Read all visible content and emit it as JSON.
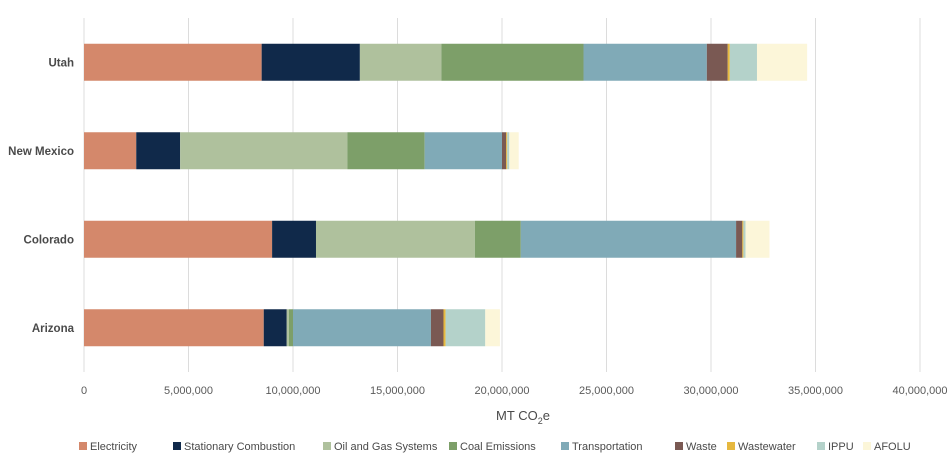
{
  "chart_data": {
    "type": "bar",
    "orientation": "horizontal",
    "stacked": true,
    "categories": [
      "Utah",
      "New Mexico",
      "Colorado",
      "Arizona"
    ],
    "xlabel_main": "MT CO",
    "xlabel_sub": "2",
    "xlabel_suffix": "e",
    "xlim": [
      0,
      40000000
    ],
    "xticks": [
      0,
      5000000,
      10000000,
      15000000,
      20000000,
      25000000,
      30000000,
      35000000,
      40000000
    ],
    "xtick_labels": [
      "0",
      "5,000,000",
      "10,000,000",
      "15,000,000",
      "20,000,000",
      "25,000,000",
      "30,000,000",
      "35,000,000",
      "40,000,000"
    ],
    "grid": true,
    "legend_position": "bottom",
    "series": [
      {
        "name": "Electricity",
        "color": "#d4886b",
        "values": [
          8500000,
          2500000,
          9000000,
          8600000
        ]
      },
      {
        "name": "Stationary Combustion",
        "color": "#10294a",
        "values": [
          4700000,
          2100000,
          2100000,
          1100000
        ]
      },
      {
        "name": "Oil and Gas Systems",
        "color": "#afc19d",
        "values": [
          3900000,
          8000000,
          7600000,
          100000
        ]
      },
      {
        "name": "Coal Emissions",
        "color": "#7d9f69",
        "values": [
          6800000,
          3700000,
          2200000,
          200000
        ]
      },
      {
        "name": "Transportation",
        "color": "#80aab7",
        "values": [
          5900000,
          3700000,
          10300000,
          6600000
        ]
      },
      {
        "name": "Waste",
        "color": "#7a5953",
        "values": [
          1000000,
          200000,
          300000,
          600000
        ]
      },
      {
        "name": "Wastewater",
        "color": "#e6b83f",
        "values": [
          100000,
          50000,
          50000,
          100000
        ]
      },
      {
        "name": "IPPU",
        "color": "#b4d2ca",
        "values": [
          1300000,
          100000,
          100000,
          1900000
        ]
      },
      {
        "name": "AFOLU",
        "color": "#fcf6d9",
        "values": [
          2400000,
          450000,
          1150000,
          700000
        ]
      }
    ]
  }
}
